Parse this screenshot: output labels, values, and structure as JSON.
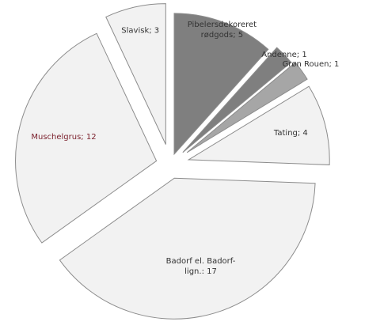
{
  "chart_data": {
    "type": "pie",
    "values": [
      5,
      1,
      1,
      4,
      17,
      12,
      3
    ],
    "value_labels": [
      "Pibelersdekoreret\nrødgods; 5",
      "Andenne; 1",
      "Grøn Rouen; 1",
      "Tating; 4",
      "Badorf el. Badorf-\nlign.: 17",
      "Muschelgrus; 12",
      "Slavisk; 3"
    ],
    "colors": [
      "#7f7f7f",
      "#7f7f7f",
      "#a6a6a6",
      "#f2f2f2",
      "#f2f2f2",
      "#f2f2f2",
      "#f2f2f2"
    ]
  }
}
